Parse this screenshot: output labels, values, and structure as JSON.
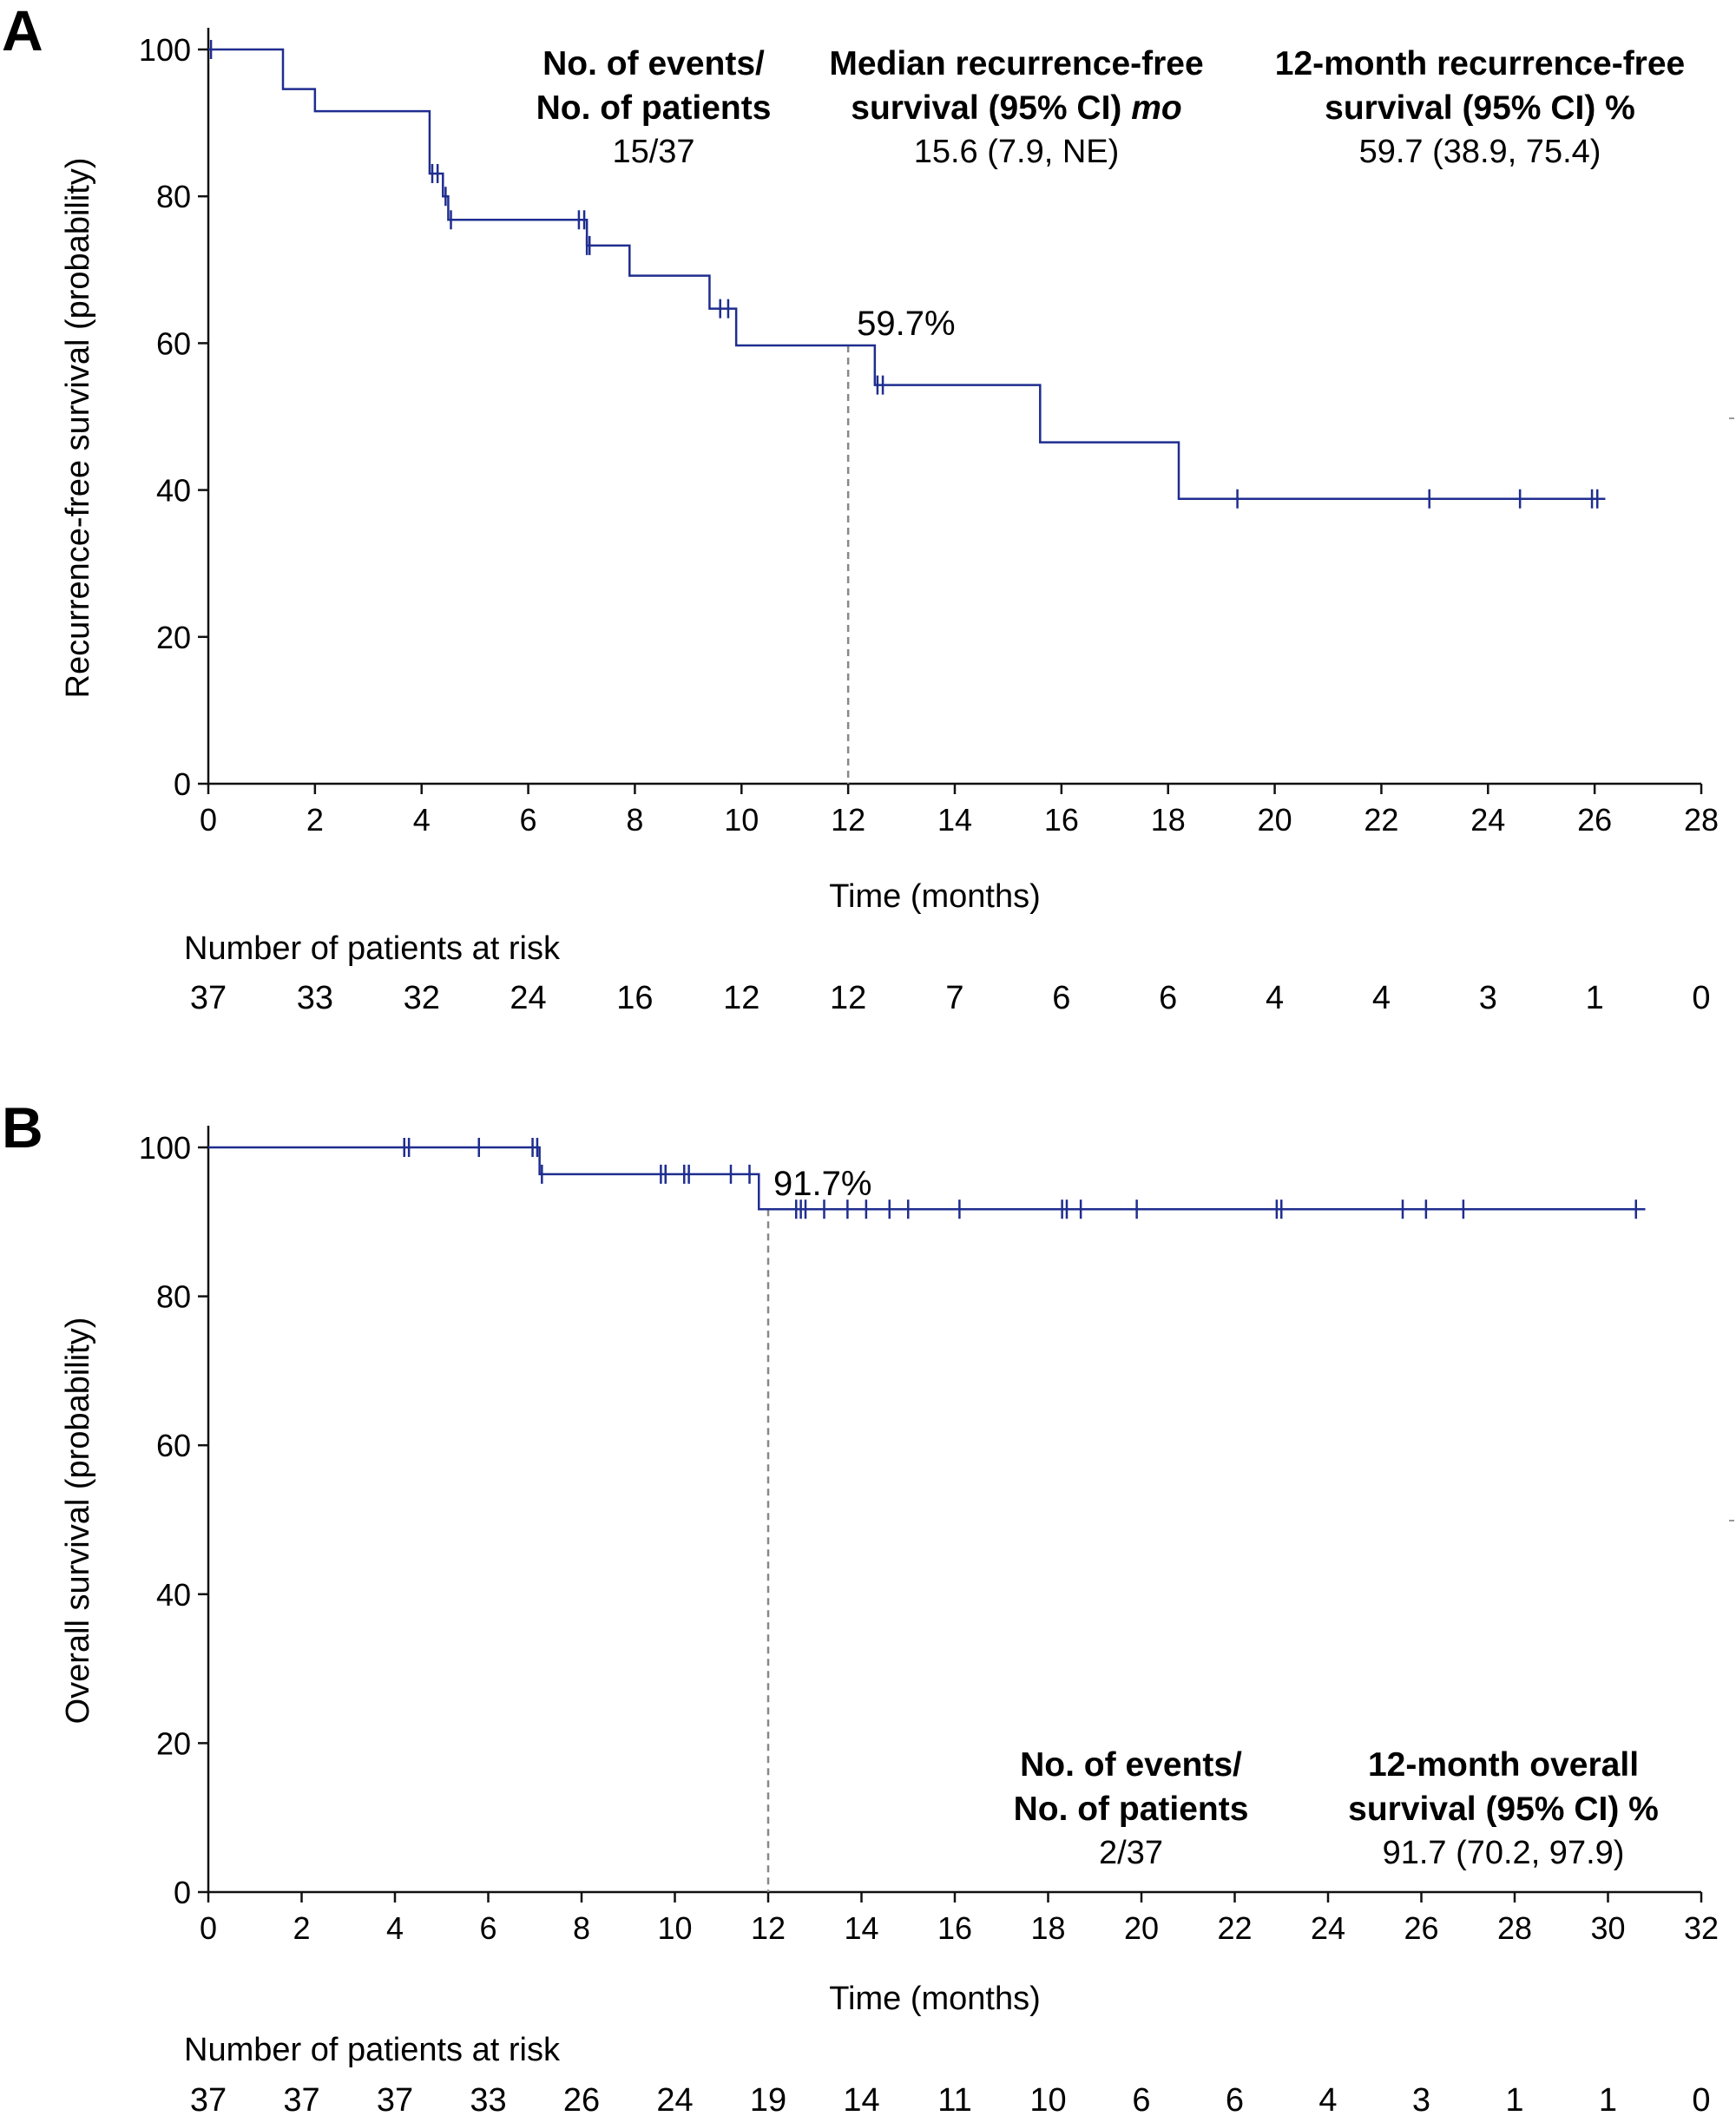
{
  "panels": {
    "A": {
      "letter": "A",
      "ylabel": "Recurrence-free survival (probability)",
      "xlabel": "Time (months)",
      "risk_title": "Number of patients at risk",
      "risk_numbers": [
        "37",
        "33",
        "32",
        "24",
        "16",
        "12",
        "12",
        "7",
        "6",
        "6",
        "4",
        "4",
        "3",
        "1",
        "0"
      ],
      "annotation": "59.7%",
      "header": {
        "events_line1": "No. of events/",
        "events_line2": "No. of patients",
        "events_value": "15/37",
        "median_line1": "Median recurrence-free",
        "median_line2_pre": "survival (95% CI) ",
        "median_line2_italic": "mo",
        "median_value": "15.6 (7.9, NE)",
        "twelve_line1": "12-month recurrence-free",
        "twelve_line2": "survival (95% CI) %",
        "twelve_value": "59.7 (38.9, 75.4)"
      }
    },
    "B": {
      "letter": "B",
      "ylabel": "Overall survival (probability)",
      "xlabel": "Time (months)",
      "risk_title": "Number of patients at risk",
      "risk_numbers": [
        "37",
        "37",
        "37",
        "33",
        "26",
        "24",
        "19",
        "14",
        "11",
        "10",
        "6",
        "6",
        "4",
        "3",
        "1",
        "1",
        "0"
      ],
      "annotation": "91.7%",
      "header": {
        "events_line1": "No. of events/",
        "events_line2": "No. of patients",
        "events_value": "2/37",
        "twelve_line1": "12-month overall",
        "twelve_line2": "survival (95% CI) %",
        "twelve_value": "91.7 (70.2, 97.9)"
      }
    }
  },
  "chart_data": [
    {
      "type": "line",
      "title": "Recurrence-free survival",
      "xlabel": "Time (months)",
      "ylabel": "Recurrence-free survival (probability)",
      "xlim": [
        0,
        28
      ],
      "ylim": [
        0,
        100
      ],
      "xticks": [
        0,
        2,
        4,
        6,
        8,
        10,
        12,
        14,
        16,
        18,
        20,
        22,
        24,
        26,
        28
      ],
      "yticks": [
        0,
        20,
        40,
        60,
        80,
        100
      ],
      "color": "#1f2d8f",
      "step_x": [
        0,
        1.4,
        2.0,
        4.15,
        4.4,
        4.5,
        7.1,
        7.9,
        9.4,
        9.9,
        12.5,
        15.6,
        18.2,
        26.2
      ],
      "step_y": [
        100,
        94.6,
        91.6,
        83.1,
        80.0,
        76.8,
        73.3,
        69.2,
        64.7,
        59.7,
        54.3,
        46.5,
        38.8,
        38.8
      ],
      "censor_x": [
        0.05,
        4.2,
        4.3,
        4.45,
        4.55,
        6.95,
        7.05,
        7.1,
        7.15,
        9.6,
        9.75,
        12.55,
        12.65,
        19.3,
        22.9,
        24.6,
        25.95,
        26.05
      ],
      "reference_x": 12,
      "reference_label": "59.7%"
    },
    {
      "type": "line",
      "title": "Overall survival",
      "xlabel": "Time (months)",
      "ylabel": "Overall survival (probability)",
      "xlim": [
        0,
        32
      ],
      "ylim": [
        0,
        100
      ],
      "xticks": [
        0,
        2,
        4,
        6,
        8,
        10,
        12,
        14,
        16,
        18,
        20,
        22,
        24,
        26,
        28,
        30,
        32
      ],
      "yticks": [
        0,
        20,
        40,
        60,
        80,
        100
      ],
      "color": "#1f2d8f",
      "step_x": [
        0,
        7.1,
        11.8,
        30.8
      ],
      "step_y": [
        100,
        96.4,
        91.7,
        91.7
      ],
      "censor_x": [
        4.2,
        4.3,
        5.8,
        6.95,
        7.05,
        7.15,
        9.7,
        9.8,
        10.2,
        10.3,
        11.2,
        11.6,
        12.6,
        12.7,
        12.8,
        13.2,
        13.7,
        14.1,
        14.6,
        15.0,
        16.1,
        18.3,
        18.4,
        18.7,
        19.9,
        22.9,
        23.0,
        25.6,
        26.1,
        26.9,
        30.6
      ],
      "reference_x": 12,
      "reference_label": "91.7%"
    }
  ]
}
